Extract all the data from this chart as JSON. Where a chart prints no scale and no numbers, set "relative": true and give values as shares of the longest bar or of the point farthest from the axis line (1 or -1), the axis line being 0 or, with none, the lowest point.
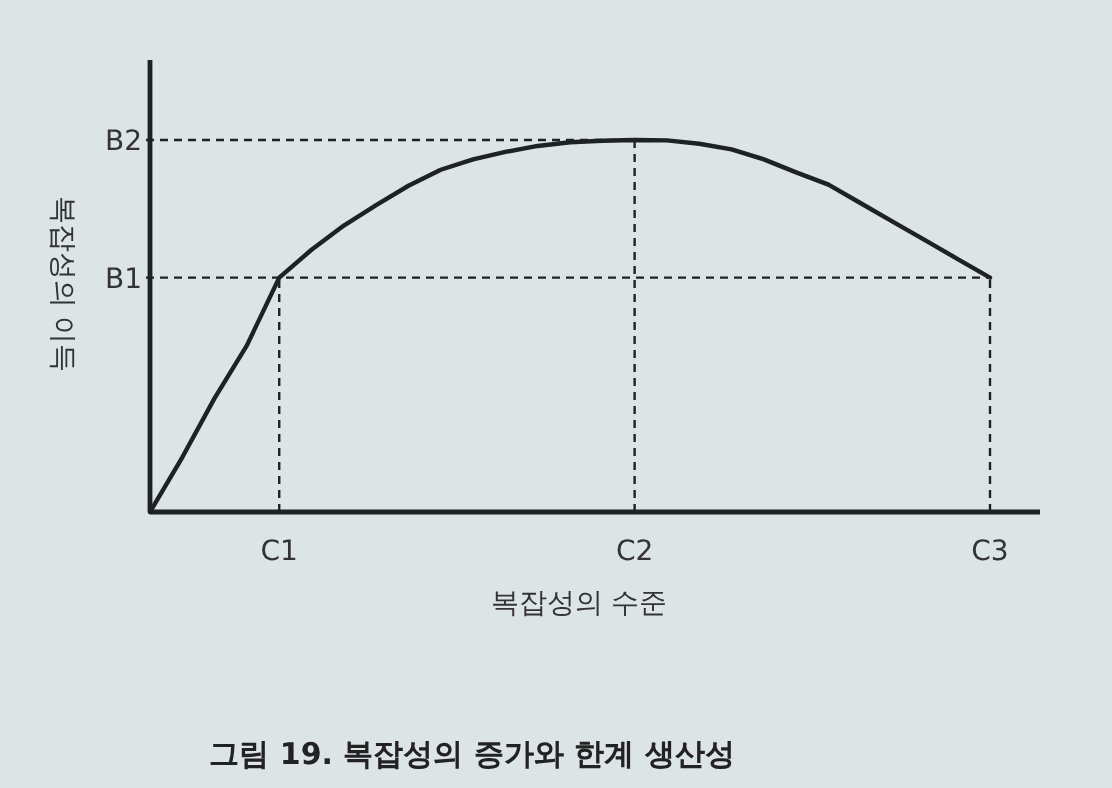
{
  "chart_data": {
    "type": "line",
    "relative": true,
    "title": "그림 19. 복잡성의 증가와 한계 생산성",
    "xlabel": "복잡성의 수준",
    "ylabel": "복잡성의 이득",
    "categories": [
      null,
      null,
      null,
      null,
      "C1",
      null,
      null,
      null,
      null,
      null,
      null,
      null,
      null,
      null,
      null,
      "C2",
      null,
      null,
      null,
      null,
      null,
      null,
      null,
      null,
      null,
      null,
      "C3"
    ],
    "series": [
      {
        "color": "#1e2222",
        "values": [
          0,
          0.147,
          0.306,
          0.448,
          0.63,
          0.705,
          0.77,
          0.825,
          0.877,
          0.92,
          0.948,
          0.968,
          0.984,
          0.994,
          0.998,
          1,
          0.999,
          0.99,
          0.975,
          0.948,
          0.913,
          0.88,
          0.83,
          0.78,
          0.73,
          0.68,
          0.63
        ]
      }
    ],
    "annotations": [
      {
        "text": "B1",
        "x": "C3",
        "y": 0.63
      },
      {
        "text": "B2",
        "x": "C2",
        "y": 1
      }
    ],
    "line_style": "solid",
    "grid": true
  }
}
